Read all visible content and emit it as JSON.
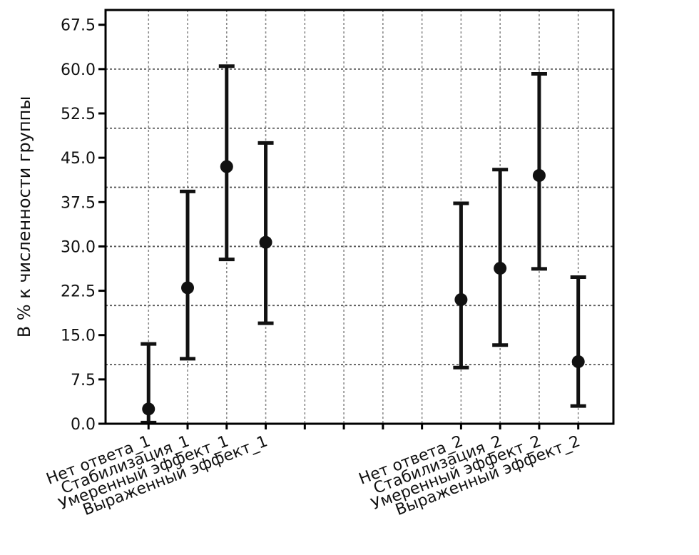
{
  "chart_data": {
    "type": "errorbar",
    "ylabel": "В % к численности группы",
    "xlabel": "",
    "ylim": [
      0,
      70
    ],
    "yticks": [
      "0.0",
      "7.5",
      "15.0",
      "22.5",
      "30.0",
      "37.5",
      "45.0",
      "52.5",
      "60.0",
      "67.5"
    ],
    "ytick_values": [
      0,
      7.5,
      15,
      22.5,
      30,
      37.5,
      45,
      52.5,
      60,
      67.5
    ],
    "horizontal_gridlines": [
      10,
      20,
      30,
      40,
      50,
      60
    ],
    "grid": true,
    "categories": [
      "Нет ответа_1",
      "Стабилизация_1",
      "Умеренный эффект_1",
      "Выраженный эффект_1",
      "",
      "",
      "",
      "",
      "Нет ответа_2",
      "Стабилизация_2",
      "Умеренный эффект_2",
      "Выраженный эффект_2"
    ],
    "points": [
      {
        "category": "Нет ответа_1",
        "value": 2.5,
        "lower": 0.2,
        "upper": 13.5
      },
      {
        "category": "Стабилизация_1",
        "value": 23.0,
        "lower": 11.0,
        "upper": 39.3
      },
      {
        "category": "Умеренный эффект_1",
        "value": 43.5,
        "lower": 27.8,
        "upper": 60.5
      },
      {
        "category": "Выраженный эффект_1",
        "value": 30.7,
        "lower": 17.0,
        "upper": 47.5
      },
      {
        "category": "Нет ответа_2",
        "value": 21.0,
        "lower": 9.5,
        "upper": 37.3
      },
      {
        "category": "Стабилизация_2",
        "value": 26.3,
        "lower": 13.3,
        "upper": 43.0
      },
      {
        "category": "Умеренный эффект_2",
        "value": 42.0,
        "lower": 26.2,
        "upper": 59.2
      },
      {
        "category": "Выраженный эффект_2",
        "value": 10.5,
        "lower": 3.0,
        "upper": 24.8
      }
    ]
  }
}
